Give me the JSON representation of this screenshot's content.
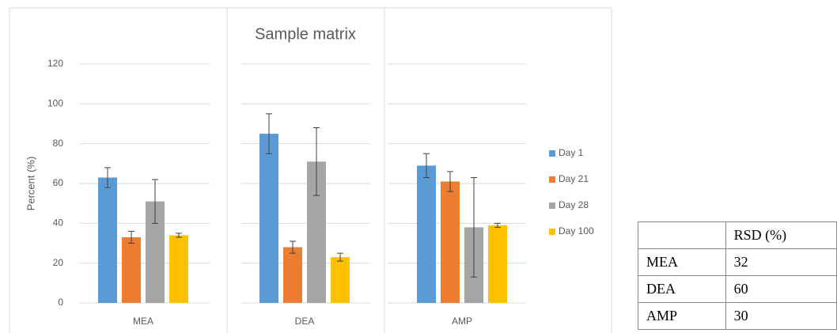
{
  "chart_data": {
    "type": "bar",
    "title": "Sample matrix",
    "y_label": "Percent (%)",
    "categories": [
      "MEA",
      "DEA",
      "AMP"
    ],
    "series": [
      {
        "name": "Day 1",
        "color": "#5b9bd5",
        "values": [
          63,
          85,
          69
        ],
        "errors": [
          5,
          10,
          6
        ]
      },
      {
        "name": "Day 21",
        "color": "#ed7d31",
        "values": [
          33,
          28,
          61
        ],
        "errors": [
          3,
          3,
          5
        ]
      },
      {
        "name": "Day 28",
        "color": "#a5a5a5",
        "values": [
          51,
          71,
          38
        ],
        "errors": [
          11,
          17,
          25
        ]
      },
      {
        "name": "Day 100",
        "color": "#ffc000",
        "values": [
          34,
          23,
          39
        ],
        "errors": [
          1,
          2,
          1
        ]
      }
    ],
    "ylim": [
      0,
      120
    ],
    "yticks": [
      0,
      20,
      40,
      60,
      80,
      100,
      120
    ],
    "grid": true,
    "legend": "right"
  },
  "table": {
    "header": [
      "RSD (%)"
    ],
    "rows": [
      [
        "MEA",
        32
      ],
      [
        "DEA",
        60
      ],
      [
        "AMP",
        30
      ]
    ]
  }
}
